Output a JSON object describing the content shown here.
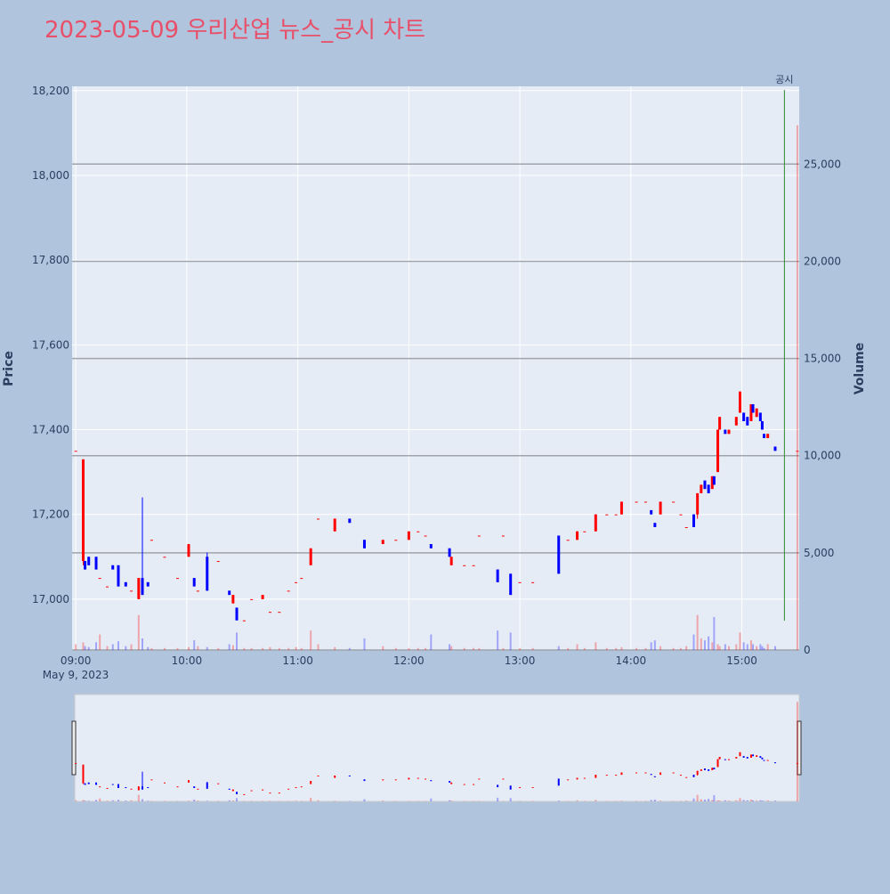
{
  "chart_data": {
    "type": "candlestick",
    "title": "2023-05-09 우리산업 뉴스_공시 차트",
    "y_label": "Price",
    "y2_label": "Volume",
    "date_label": "May 9, 2023",
    "increasing_color": "#ff0000",
    "decreasing_color": "#0000ff",
    "x": [
      "09:00",
      "09:04",
      "09:05",
      "09:07",
      "09:11",
      "09:13",
      "09:17",
      "09:20",
      "09:23",
      "09:27",
      "09:30",
      "09:34",
      "09:36",
      "09:39",
      "09:41",
      "09:48",
      "09:55",
      "10:01",
      "10:04",
      "10:06",
      "10:11",
      "10:17",
      "10:23",
      "10:25",
      "10:27",
      "10:31",
      "10:35",
      "10:41",
      "10:45",
      "10:50",
      "10:55",
      "10:59",
      "11:02",
      "11:07",
      "11:11",
      "11:20",
      "11:28",
      "11:36",
      "11:46",
      "11:53",
      "12:00",
      "12:05",
      "12:09",
      "12:12",
      "12:22",
      "12:23",
      "12:30",
      "12:35",
      "12:38",
      "12:48",
      "12:51",
      "12:55",
      "13:00",
      "13:07",
      "13:21",
      "13:26",
      "13:31",
      "13:35",
      "13:41",
      "13:47",
      "13:52",
      "13:55",
      "14:03",
      "14:08",
      "14:11",
      "14:13",
      "14:16",
      "14:23",
      "14:27",
      "14:30",
      "14:34",
      "14:36",
      "14:38",
      "14:40",
      "14:42",
      "14:44",
      "14:45",
      "14:47",
      "14:48",
      "14:51",
      "14:53",
      "14:57",
      "14:59",
      "15:01",
      "15:03",
      "15:05",
      "15:06",
      "15:08",
      "15:10",
      "15:11",
      "15:12",
      "15:14",
      "15:18",
      "15:30"
    ],
    "open": [
      17350,
      17090,
      17090,
      17100,
      17100,
      17050,
      17030,
      17080,
      17080,
      17040,
      17020,
      17000,
      17050,
      17040,
      17140,
      17100,
      17050,
      17100,
      17050,
      17020,
      17100,
      17090,
      17020,
      16990,
      16980,
      16950,
      17000,
      17000,
      16970,
      16970,
      17020,
      17040,
      17050,
      17080,
      17190,
      17160,
      17190,
      17140,
      17130,
      17140,
      17140,
      17160,
      17150,
      17130,
      17120,
      17080,
      17080,
      17080,
      17150,
      17070,
      17150,
      17060,
      17040,
      17040,
      17150,
      17140,
      17140,
      17160,
      17160,
      17200,
      17200,
      17200,
      17230,
      17230,
      17210,
      17180,
      17200,
      17230,
      17200,
      17170,
      17200,
      17200,
      17250,
      17280,
      17270,
      17260,
      17290,
      17300,
      17400,
      17400,
      17390,
      17410,
      17440,
      17440,
      17430,
      17420,
      17460,
      17430,
      17440,
      17420,
      17390,
      17380,
      17360,
      17350
    ],
    "high": [
      17350,
      17330,
      17090,
      17100,
      17100,
      17050,
      17030,
      17080,
      17080,
      17040,
      17020,
      17050,
      17240,
      17040,
      17140,
      17100,
      17050,
      17130,
      17050,
      17020,
      17110,
      17090,
      17020,
      17010,
      16980,
      16950,
      17000,
      17010,
      16970,
      16970,
      17020,
      17040,
      17050,
      17120,
      17190,
      17190,
      17190,
      17140,
      17140,
      17140,
      17160,
      17160,
      17150,
      17130,
      17120,
      17100,
      17080,
      17080,
      17150,
      17070,
      17150,
      17060,
      17040,
      17040,
      17150,
      17140,
      17160,
      17160,
      17200,
      17200,
      17200,
      17230,
      17230,
      17230,
      17210,
      17180,
      17230,
      17230,
      17200,
      17170,
      17200,
      17250,
      17270,
      17280,
      17270,
      17290,
      17290,
      17400,
      17430,
      17400,
      17400,
      17430,
      17490,
      17440,
      17430,
      17460,
      17460,
      17450,
      17440,
      17420,
      17390,
      17390,
      17360,
      17350
    ],
    "low": [
      17350,
      17080,
      17070,
      17080,
      17070,
      17050,
      17030,
      17070,
      17030,
      17030,
      17020,
      17000,
      17010,
      17030,
      17140,
      17100,
      17050,
      17100,
      17030,
      17020,
      17020,
      17090,
      17010,
      16990,
      16950,
      16950,
      17000,
      17000,
      16970,
      16970,
      17020,
      17040,
      17050,
      17080,
      17190,
      17160,
      17180,
      17120,
      17130,
      17140,
      17140,
      17160,
      17150,
      17120,
      17100,
      17080,
      17080,
      17080,
      17150,
      17040,
      17150,
      17010,
      17040,
      17040,
      17060,
      17140,
      17140,
      17160,
      17160,
      17200,
      17200,
      17200,
      17230,
      17230,
      17200,
      17170,
      17200,
      17230,
      17200,
      17170,
      17170,
      17190,
      17250,
      17260,
      17250,
      17260,
      17270,
      17300,
      17400,
      17390,
      17390,
      17410,
      17440,
      17420,
      17410,
      17420,
      17440,
      17430,
      17420,
      17400,
      17380,
      17380,
      17350,
      17350
    ],
    "close": [
      17350,
      17330,
      17070,
      17080,
      17070,
      17050,
      17030,
      17070,
      17030,
      17030,
      17020,
      17050,
      17010,
      17030,
      17140,
      17100,
      17050,
      17130,
      17030,
      17020,
      17020,
      17090,
      17010,
      17010,
      16950,
      16950,
      17000,
      17010,
      16970,
      16970,
      17020,
      17040,
      17050,
      17120,
      17190,
      17190,
      17180,
      17120,
      17140,
      17140,
      17160,
      17160,
      17150,
      17120,
      17100,
      17100,
      17080,
      17080,
      17150,
      17040,
      17150,
      17010,
      17040,
      17040,
      17060,
      17140,
      17160,
      17160,
      17200,
      17200,
      17200,
      17230,
      17230,
      17230,
      17200,
      17170,
      17230,
      17230,
      17200,
      17170,
      17170,
      17250,
      17270,
      17260,
      17250,
      17290,
      17270,
      17400,
      17430,
      17390,
      17400,
      17430,
      17490,
      17420,
      17410,
      17460,
      17440,
      17450,
      17420,
      17400,
      17380,
      17390,
      17350,
      17350
    ],
    "volume": [
      300,
      400,
      200,
      150,
      400,
      800,
      200,
      300,
      450,
      200,
      300,
      1800,
      600,
      150,
      100,
      100,
      100,
      150,
      500,
      200,
      150,
      100,
      300,
      250,
      900,
      100,
      100,
      100,
      150,
      100,
      100,
      150,
      100,
      1000,
      300,
      150,
      100,
      600,
      200,
      100,
      100,
      100,
      100,
      800,
      300,
      200,
      100,
      100,
      100,
      1000,
      100,
      900,
      100,
      100,
      200,
      100,
      300,
      100,
      400,
      100,
      100,
      150,
      100,
      100,
      400,
      500,
      200,
      100,
      100,
      200,
      800,
      1800,
      600,
      500,
      700,
      400,
      1700,
      300,
      200,
      300,
      200,
      300,
      900,
      400,
      300,
      500,
      300,
      200,
      300,
      200,
      100,
      300,
      200,
      27000
    ],
    "xlim": [
      "08:58",
      "15:31"
    ],
    "xticks": [
      "09:00",
      "10:00",
      "11:00",
      "12:00",
      "13:00",
      "14:00",
      "15:00"
    ],
    "ylim": [
      16880,
      18210
    ],
    "yticks": [
      {
        "value": 17000,
        "label": "17,000"
      },
      {
        "value": 17200,
        "label": "17,200"
      },
      {
        "value": 17400,
        "label": "17,400"
      },
      {
        "value": 17600,
        "label": "17,600"
      },
      {
        "value": 17800,
        "label": "17,800"
      },
      {
        "value": 18000,
        "label": "18,000"
      },
      {
        "value": 18200,
        "label": "18,200"
      }
    ],
    "y2lim": [
      0,
      29000
    ],
    "y2ticks": [
      0,
      {
        "value": 5000,
        "label": "5,000"
      },
      {
        "value": 10000,
        "label": "10,000"
      },
      {
        "value": 15000,
        "label": "15,000"
      },
      {
        "value": 20000,
        "label": "20,000"
      },
      {
        "value": 25000,
        "label": "25,000"
      }
    ],
    "grid": true,
    "rangeslider": true,
    "annotations": [
      {
        "x": "15:23",
        "text": "공시",
        "color": "#2e8b2e"
      }
    ]
  }
}
